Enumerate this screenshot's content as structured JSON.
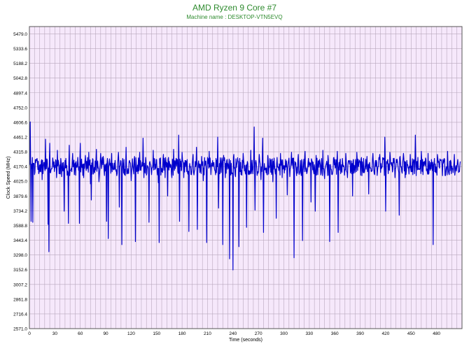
{
  "chart_data": {
    "type": "line",
    "title": "AMD Ryzen 9 Core #7",
    "subtitle": "Machine name : DESKTOP-VTN5EVQ",
    "xlabel": "Time (seconds)",
    "ylabel": "Clock Speed (MHz)",
    "xlim": [
      0,
      510
    ],
    "ylim": [
      2571.0,
      5551.0
    ],
    "x_ticks": [
      0,
      30,
      60,
      90,
      120,
      150,
      180,
      210,
      240,
      270,
      300,
      330,
      360,
      390,
      420,
      450,
      480
    ],
    "y_ticks": [
      2571.0,
      2716.4,
      2861.8,
      3007.2,
      3152.6,
      3298.0,
      3443.4,
      3588.8,
      3734.2,
      3879.6,
      4025.0,
      4170.4,
      4315.8,
      4461.2,
      4606.6,
      4752.0,
      4897.4,
      5042.8,
      5188.2,
      5333.6,
      5479.0
    ],
    "grid": true,
    "sample_interval_seconds": 1,
    "baseline_mhz": 4170,
    "series": [
      {
        "color": "#0000cc",
        "points": [
          [
            0,
            4180
          ],
          [
            1,
            4610
          ],
          [
            2,
            3630
          ],
          [
            3,
            4150
          ],
          [
            4,
            3620
          ],
          [
            5,
            4200
          ],
          [
            6,
            4090
          ],
          [
            8,
            4240
          ],
          [
            9,
            4250
          ],
          [
            11,
            4100
          ],
          [
            13,
            4190
          ],
          [
            15,
            4040
          ],
          [
            17,
            4210
          ],
          [
            19,
            4440
          ],
          [
            20,
            4150
          ],
          [
            22,
            3600
          ],
          [
            23,
            3330
          ],
          [
            24,
            4400
          ],
          [
            26,
            4150
          ],
          [
            28,
            4220
          ],
          [
            30,
            4180
          ],
          [
            32,
            4060
          ],
          [
            33,
            4330
          ],
          [
            35,
            4100
          ],
          [
            37,
            4250
          ],
          [
            38,
            4070
          ],
          [
            40,
            4210
          ],
          [
            41,
            3730
          ],
          [
            42,
            4230
          ],
          [
            44,
            4180
          ],
          [
            46,
            3610
          ],
          [
            47,
            4380
          ],
          [
            49,
            4140
          ],
          [
            51,
            4300
          ],
          [
            53,
            4090
          ],
          [
            55,
            4220
          ],
          [
            57,
            4260
          ],
          [
            59,
            3610
          ],
          [
            60,
            4400
          ],
          [
            62,
            4160
          ],
          [
            64,
            4060
          ],
          [
            66,
            4280
          ],
          [
            68,
            4150
          ],
          [
            70,
            4310
          ],
          [
            72,
            4000
          ],
          [
            73,
            3840
          ],
          [
            75,
            4240
          ],
          [
            77,
            4110
          ],
          [
            79,
            4340
          ],
          [
            80,
            4180
          ],
          [
            82,
            4020
          ],
          [
            84,
            4300
          ],
          [
            85,
            4150
          ],
          [
            87,
            4270
          ],
          [
            89,
            4190
          ],
          [
            91,
            3630
          ],
          [
            92,
            4250
          ],
          [
            93,
            3460
          ],
          [
            95,
            4180
          ],
          [
            97,
            4300
          ],
          [
            99,
            4140
          ],
          [
            101,
            4230
          ],
          [
            103,
            4080
          ],
          [
            105,
            4310
          ],
          [
            106,
            3770
          ],
          [
            107,
            4180
          ],
          [
            109,
            3400
          ],
          [
            110,
            4250
          ],
          [
            112,
            4090
          ],
          [
            114,
            4360
          ],
          [
            116,
            4150
          ],
          [
            118,
            4230
          ],
          [
            120,
            4030
          ],
          [
            122,
            4180
          ],
          [
            124,
            4270
          ],
          [
            125,
            3430
          ],
          [
            126,
            4200
          ],
          [
            128,
            4100
          ],
          [
            130,
            4310
          ],
          [
            132,
            4170
          ],
          [
            134,
            4450
          ],
          [
            135,
            4060
          ],
          [
            137,
            4260
          ],
          [
            139,
            4180
          ],
          [
            141,
            3620
          ],
          [
            142,
            4220
          ],
          [
            144,
            4090
          ],
          [
            146,
            4330
          ],
          [
            148,
            4140
          ],
          [
            150,
            4240
          ],
          [
            152,
            4010
          ],
          [
            153,
            3420
          ],
          [
            154,
            4200
          ],
          [
            156,
            4120
          ],
          [
            158,
            4290
          ],
          [
            160,
            4060
          ],
          [
            162,
            4210
          ],
          [
            163,
            3880
          ],
          [
            164,
            4260
          ],
          [
            166,
            4160
          ],
          [
            168,
            4060
          ],
          [
            170,
            4340
          ],
          [
            172,
            4150
          ],
          [
            174,
            4240
          ],
          [
            176,
            4480
          ],
          [
            177,
            3630
          ],
          [
            178,
            4170
          ],
          [
            180,
            4310
          ],
          [
            182,
            4060
          ],
          [
            184,
            4170
          ],
          [
            186,
            4240
          ],
          [
            188,
            3530
          ],
          [
            189,
            4200
          ],
          [
            191,
            4090
          ],
          [
            193,
            4290
          ],
          [
            195,
            4140
          ],
          [
            197,
            4360
          ],
          [
            198,
            3550
          ],
          [
            199,
            4200
          ],
          [
            201,
            4110
          ],
          [
            203,
            4270
          ],
          [
            205,
            4030
          ],
          [
            207,
            4180
          ],
          [
            209,
            3420
          ],
          [
            210,
            4260
          ],
          [
            212,
            4320
          ],
          [
            214,
            4090
          ],
          [
            216,
            4230
          ],
          [
            218,
            4160
          ],
          [
            220,
            4250
          ],
          [
            222,
            4460
          ],
          [
            223,
            3760
          ],
          [
            224,
            4200
          ],
          [
            226,
            4110
          ],
          [
            228,
            3400
          ],
          [
            229,
            4280
          ],
          [
            231,
            4060
          ],
          [
            233,
            4240
          ],
          [
            235,
            4150
          ],
          [
            236,
            3260
          ],
          [
            237,
            4230
          ],
          [
            239,
            4100
          ],
          [
            240,
            3150
          ],
          [
            241,
            4290
          ],
          [
            243,
            4070
          ],
          [
            245,
            4210
          ],
          [
            247,
            3380
          ],
          [
            248,
            4250
          ],
          [
            250,
            4130
          ],
          [
            252,
            4300
          ],
          [
            254,
            4180
          ],
          [
            256,
            3570
          ],
          [
            257,
            4220
          ],
          [
            259,
            4090
          ],
          [
            261,
            4330
          ],
          [
            263,
            4150
          ],
          [
            265,
            4560
          ],
          [
            266,
            3740
          ],
          [
            267,
            4230
          ],
          [
            269,
            4120
          ],
          [
            271,
            4290
          ],
          [
            273,
            4040
          ],
          [
            275,
            4450
          ],
          [
            276,
            3520
          ],
          [
            277,
            4200
          ],
          [
            279,
            4110
          ],
          [
            281,
            4280
          ],
          [
            283,
            4160
          ],
          [
            285,
            4240
          ],
          [
            287,
            4020
          ],
          [
            289,
            4180
          ],
          [
            291,
            3660
          ],
          [
            292,
            4260
          ],
          [
            294,
            4130
          ],
          [
            296,
            4300
          ],
          [
            298,
            4060
          ],
          [
            300,
            4180
          ],
          [
            302,
            4240
          ],
          [
            304,
            3890
          ],
          [
            305,
            4200
          ],
          [
            307,
            4070
          ],
          [
            309,
            4310
          ],
          [
            311,
            4150
          ],
          [
            312,
            3270
          ],
          [
            313,
            4220
          ],
          [
            315,
            4080
          ],
          [
            317,
            4290
          ],
          [
            319,
            4130
          ],
          [
            321,
            4240
          ],
          [
            322,
            3440
          ],
          [
            323,
            4190
          ],
          [
            325,
            4320
          ],
          [
            327,
            4100
          ],
          [
            329,
            4250
          ],
          [
            331,
            4180
          ],
          [
            332,
            3820
          ],
          [
            333,
            4230
          ],
          [
            335,
            4120
          ],
          [
            337,
            3730
          ],
          [
            338,
            4280
          ],
          [
            340,
            4090
          ],
          [
            342,
            4240
          ],
          [
            344,
            4170
          ],
          [
            346,
            4330
          ],
          [
            348,
            4050
          ],
          [
            350,
            4200
          ],
          [
            352,
            4280
          ],
          [
            354,
            3430
          ],
          [
            355,
            4190
          ],
          [
            357,
            4090
          ],
          [
            359,
            4260
          ],
          [
            361,
            4170
          ],
          [
            363,
            4320
          ],
          [
            364,
            3520
          ],
          [
            365,
            4210
          ],
          [
            367,
            4100
          ],
          [
            369,
            4250
          ],
          [
            371,
            4160
          ],
          [
            373,
            4300
          ],
          [
            375,
            4060
          ],
          [
            377,
            4220
          ],
          [
            379,
            4130
          ],
          [
            381,
            3880
          ],
          [
            382,
            4240
          ],
          [
            384,
            4110
          ],
          [
            386,
            4310
          ],
          [
            388,
            4170
          ],
          [
            390,
            4220
          ],
          [
            392,
            4080
          ],
          [
            394,
            4250
          ],
          [
            396,
            4180
          ],
          [
            398,
            4270
          ],
          [
            400,
            3900
          ],
          [
            401,
            4210
          ],
          [
            403,
            4120
          ],
          [
            405,
            4300
          ],
          [
            407,
            4090
          ],
          [
            409,
            4230
          ],
          [
            411,
            4170
          ],
          [
            413,
            4290
          ],
          [
            415,
            4150
          ],
          [
            417,
            4240
          ],
          [
            419,
            4460
          ],
          [
            420,
            3730
          ],
          [
            421,
            4220
          ],
          [
            423,
            4100
          ],
          [
            425,
            4310
          ],
          [
            427,
            4180
          ],
          [
            429,
            4250
          ],
          [
            431,
            4060
          ],
          [
            433,
            4210
          ],
          [
            435,
            4140
          ],
          [
            436,
            3690
          ],
          [
            437,
            4270
          ],
          [
            439,
            4120
          ],
          [
            441,
            4300
          ],
          [
            443,
            4060
          ],
          [
            445,
            4230
          ],
          [
            447,
            4160
          ],
          [
            449,
            4290
          ],
          [
            451,
            4120
          ],
          [
            453,
            4240
          ],
          [
            455,
            4480
          ],
          [
            456,
            4080
          ],
          [
            458,
            4260
          ],
          [
            460,
            4140
          ],
          [
            462,
            4320
          ],
          [
            464,
            4090
          ],
          [
            466,
            4220
          ],
          [
            468,
            4130
          ],
          [
            470,
            4300
          ],
          [
            472,
            4160
          ],
          [
            474,
            4240
          ],
          [
            476,
            3400
          ],
          [
            477,
            4200
          ],
          [
            479,
            4110
          ],
          [
            481,
            4290
          ],
          [
            483,
            4170
          ],
          [
            485,
            4230
          ],
          [
            487,
            4080
          ],
          [
            489,
            4250
          ],
          [
            491,
            4140
          ],
          [
            493,
            4320
          ],
          [
            495,
            4090
          ],
          [
            497,
            4210
          ],
          [
            499,
            4150
          ],
          [
            501,
            4290
          ],
          [
            503,
            4180
          ],
          [
            505,
            4240
          ],
          [
            507,
            4120
          ],
          [
            508,
            4220
          ]
        ]
      }
    ]
  },
  "colors": {
    "title": "#2e8b2e",
    "plot_background": "#f6e8fb",
    "grid": "#b8a7bd",
    "line": "#0000cc"
  }
}
